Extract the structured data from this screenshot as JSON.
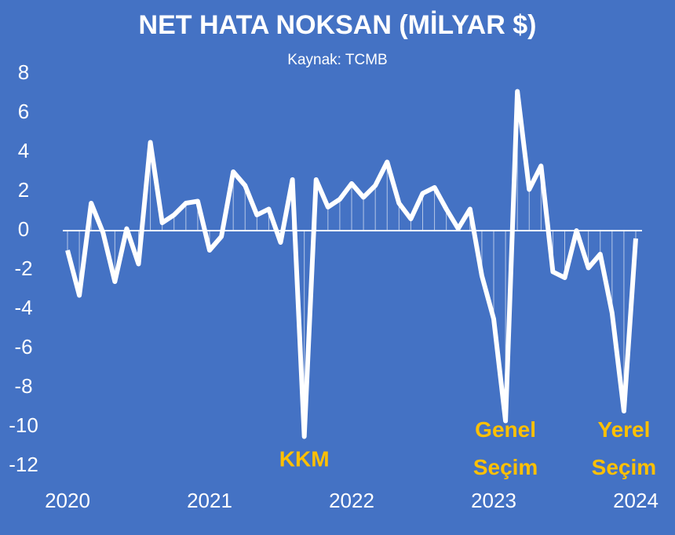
{
  "chart_data": {
    "type": "line",
    "title": "NET HATA NOKSAN (MİLYAR $)",
    "subtitle": "Kaynak: TCMB",
    "categories": [
      "2020",
      null,
      null,
      null,
      null,
      null,
      null,
      null,
      null,
      null,
      null,
      null,
      "2021",
      null,
      null,
      null,
      null,
      null,
      null,
      null,
      null,
      null,
      null,
      null,
      "2022",
      null,
      null,
      null,
      null,
      null,
      null,
      null,
      null,
      null,
      null,
      null,
      "2023",
      null,
      null,
      null,
      null,
      null,
      null,
      null,
      null,
      null,
      null,
      null,
      "2024"
    ],
    "series": [
      {
        "color": "#ffffff",
        "values": [
          -1.0,
          -3.3,
          1.4,
          -0.1,
          -2.6,
          0.1,
          -1.7,
          4.5,
          0.4,
          0.8,
          1.4,
          1.5,
          -1.0,
          -0.3,
          3.0,
          2.3,
          0.8,
          1.1,
          -0.6,
          2.6,
          -10.5,
          2.6,
          1.2,
          1.6,
          2.4,
          1.7,
          2.3,
          3.5,
          1.4,
          0.6,
          1.9,
          2.2,
          1.1,
          0.1,
          1.1,
          -2.3,
          -4.5,
          -9.7,
          7.1,
          2.1,
          3.3,
          -2.1,
          -2.4,
          0.0,
          -1.9,
          -1.2,
          -4.2,
          -9.2,
          -0.4
        ]
      }
    ],
    "ylim": [
      -12,
      8
    ],
    "yticks": [
      -12,
      -10,
      -8,
      -6,
      -4,
      -2,
      0,
      2,
      4,
      6,
      8
    ],
    "annotations": [
      {
        "text": "KKM",
        "index": 20
      },
      {
        "text": "Genel Seçim",
        "index": 37
      },
      {
        "text": "Yerel Seçim",
        "index": 47
      }
    ],
    "annotation_color": "#ffc000"
  }
}
